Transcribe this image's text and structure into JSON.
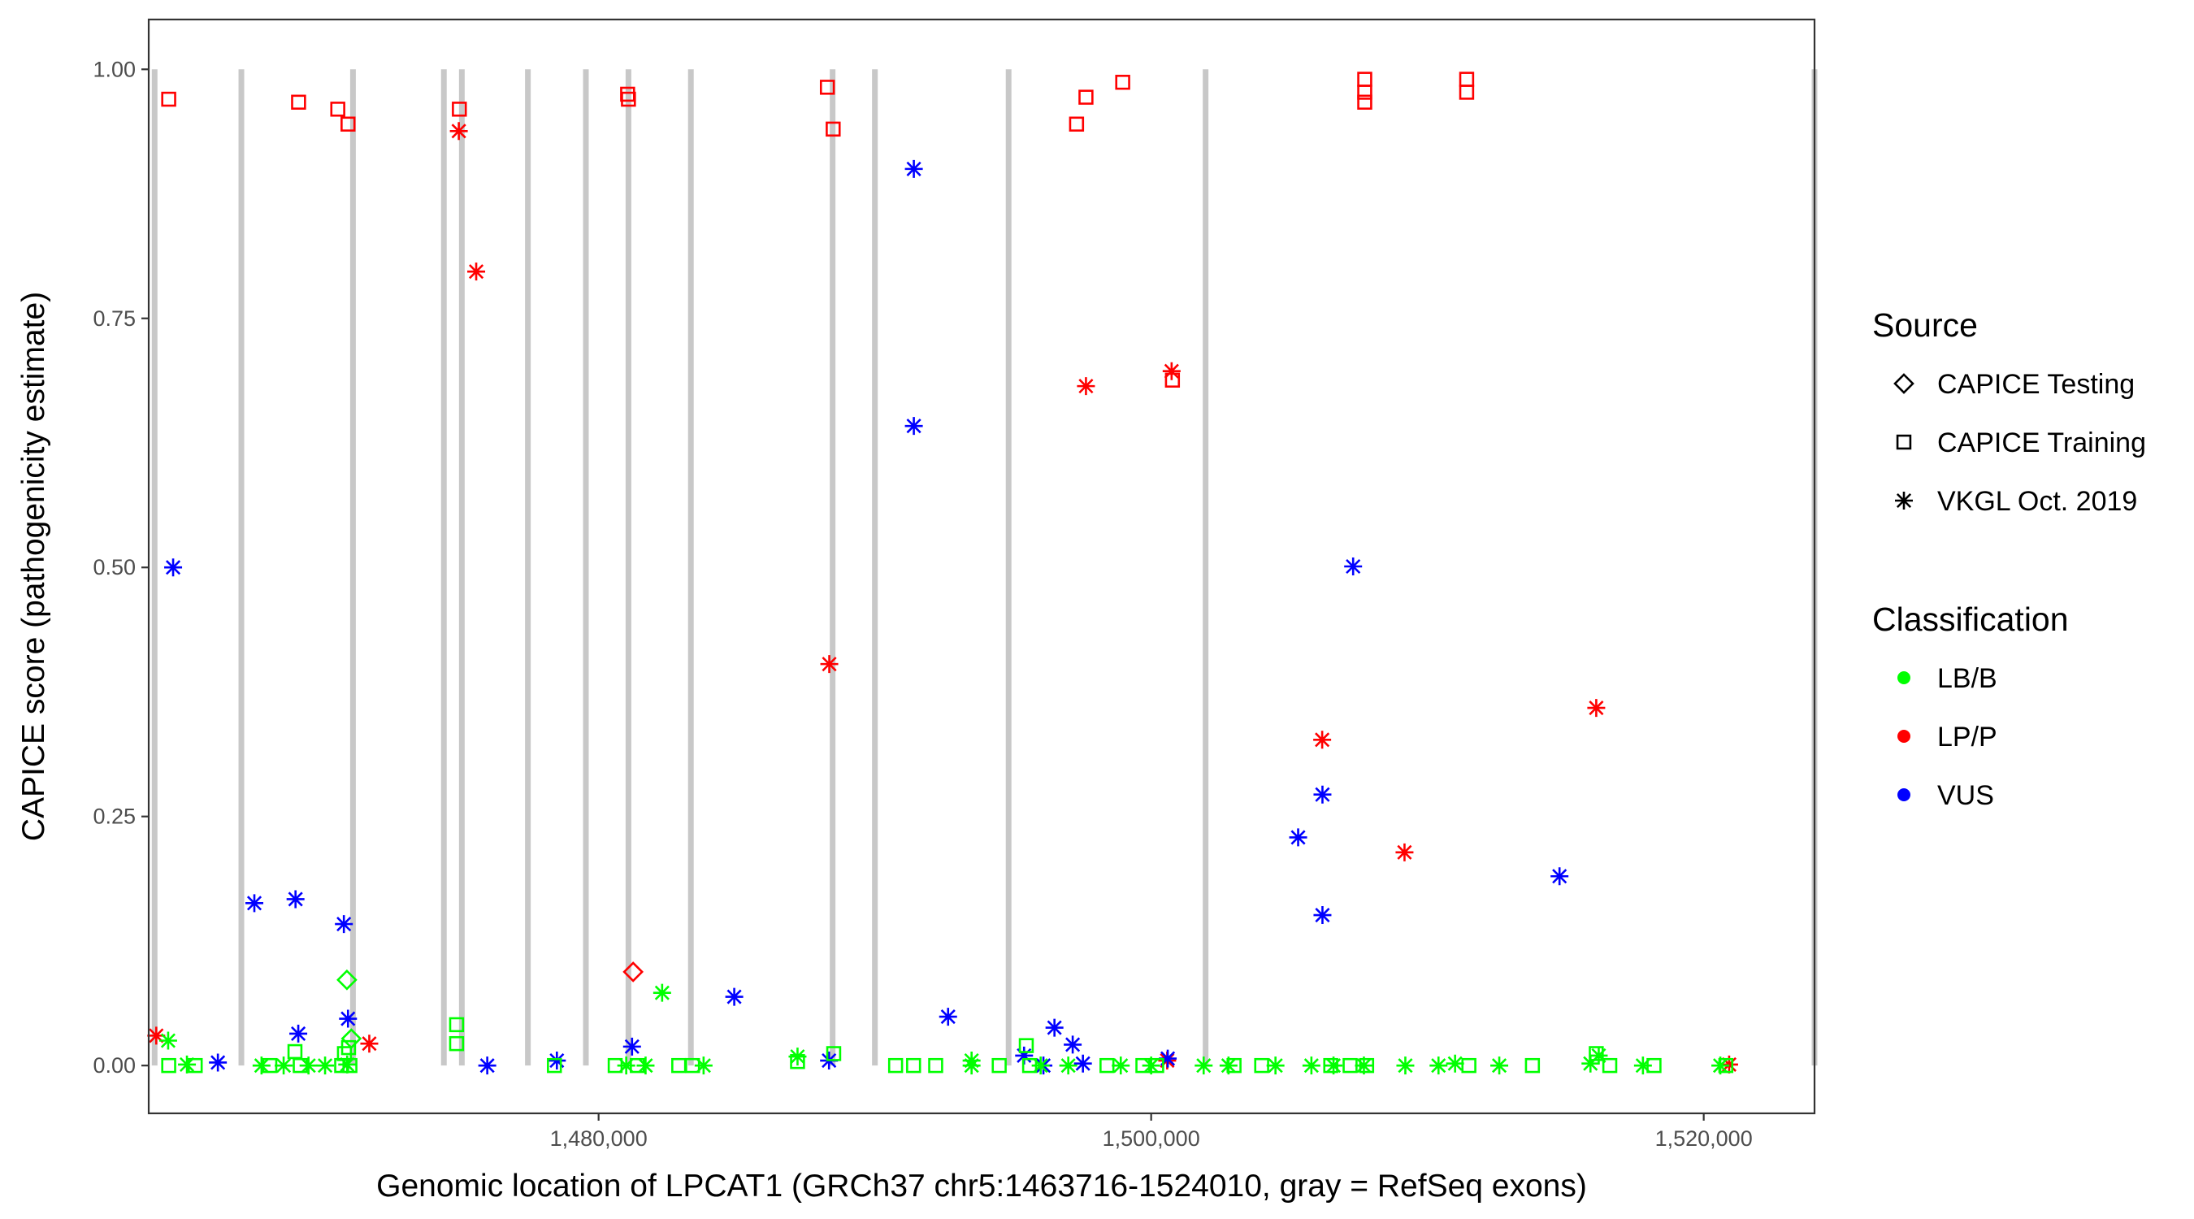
{
  "chart_data": {
    "type": "scatter",
    "title": "",
    "xlabel": "Genomic location of LPCAT1 (GRCh37 chr5:1463716-1524010, gray = RefSeq exons)",
    "ylabel": "CAPICE score (pathogenicity estimate)",
    "xlim": [
      1463716,
      1524010
    ],
    "ylim": [
      -0.048,
      1.05
    ],
    "x_ticks": [
      1480000,
      1500000,
      1520000
    ],
    "x_tick_labels": [
      "1,480,000",
      "1,500,000",
      "1,520,000"
    ],
    "y_ticks": [
      0.0,
      0.25,
      0.5,
      0.75,
      1.0
    ],
    "y_tick_labels": [
      "0.00",
      "0.25",
      "0.50",
      "0.75",
      "1.00"
    ],
    "grid": false,
    "exons": [
      1463930,
      1467070,
      1471110,
      1474400,
      1475050,
      1477440,
      1479540,
      1481080,
      1483340,
      1488470,
      1490000,
      1494840,
      1501970,
      1524010
    ],
    "legend": {
      "position": "right",
      "source_title": "Source",
      "source_items": [
        {
          "label": "CAPICE Testing",
          "shape": "diamond"
        },
        {
          "label": "CAPICE Training",
          "shape": "square"
        },
        {
          "label": "VKGL Oct. 2019",
          "shape": "asterisk"
        }
      ],
      "class_title": "Classification",
      "class_items": [
        {
          "label": "LB/B",
          "color": "#00ff00"
        },
        {
          "label": "LP/P",
          "color": "#ff0000"
        },
        {
          "label": "VUS",
          "color": "#0000ff"
        }
      ]
    },
    "colors": {
      "LB/B": "#00ff00",
      "LP/P": "#ff0000",
      "VUS": "#0000ff",
      "exon": "#c8c8c8"
    },
    "points": [
      {
        "x": 1464440,
        "y": 0.97,
        "s": "train",
        "c": "LP/P"
      },
      {
        "x": 1469140,
        "y": 0.967,
        "s": "train",
        "c": "LP/P"
      },
      {
        "x": 1470560,
        "y": 0.96,
        "s": "train",
        "c": "LP/P"
      },
      {
        "x": 1470930,
        "y": 0.945,
        "s": "train",
        "c": "LP/P"
      },
      {
        "x": 1474960,
        "y": 0.96,
        "s": "train",
        "c": "LP/P"
      },
      {
        "x": 1481050,
        "y": 0.975,
        "s": "train",
        "c": "LP/P"
      },
      {
        "x": 1481080,
        "y": 0.97,
        "s": "train",
        "c": "LP/P"
      },
      {
        "x": 1488280,
        "y": 0.982,
        "s": "train",
        "c": "LP/P"
      },
      {
        "x": 1488490,
        "y": 0.94,
        "s": "train",
        "c": "LP/P"
      },
      {
        "x": 1497300,
        "y": 0.945,
        "s": "train",
        "c": "LP/P"
      },
      {
        "x": 1497640,
        "y": 0.972,
        "s": "train",
        "c": "LP/P"
      },
      {
        "x": 1498970,
        "y": 0.987,
        "s": "train",
        "c": "LP/P"
      },
      {
        "x": 1500770,
        "y": 0.688,
        "s": "train",
        "c": "LP/P"
      },
      {
        "x": 1507730,
        "y": 0.99,
        "s": "train",
        "c": "LP/P"
      },
      {
        "x": 1507730,
        "y": 0.977,
        "s": "train",
        "c": "LP/P"
      },
      {
        "x": 1507730,
        "y": 0.967,
        "s": "train",
        "c": "LP/P"
      },
      {
        "x": 1511420,
        "y": 0.99,
        "s": "train",
        "c": "LP/P"
      },
      {
        "x": 1511420,
        "y": 0.977,
        "s": "train",
        "c": "LP/P"
      },
      {
        "x": 1474940,
        "y": 0.938,
        "s": "vkgl",
        "c": "LP/P"
      },
      {
        "x": 1475570,
        "y": 0.797,
        "s": "vkgl",
        "c": "LP/P"
      },
      {
        "x": 1463990,
        "y": 0.03,
        "s": "vkgl",
        "c": "LP/P"
      },
      {
        "x": 1471700,
        "y": 0.022,
        "s": "vkgl",
        "c": "LP/P"
      },
      {
        "x": 1488350,
        "y": 0.403,
        "s": "vkgl",
        "c": "LP/P"
      },
      {
        "x": 1497640,
        "y": 0.682,
        "s": "vkgl",
        "c": "LP/P"
      },
      {
        "x": 1500740,
        "y": 0.697,
        "s": "vkgl",
        "c": "LP/P"
      },
      {
        "x": 1506190,
        "y": 0.327,
        "s": "vkgl",
        "c": "LP/P"
      },
      {
        "x": 1509170,
        "y": 0.214,
        "s": "vkgl",
        "c": "LP/P"
      },
      {
        "x": 1516110,
        "y": 0.359,
        "s": "vkgl",
        "c": "LP/P"
      },
      {
        "x": 1500580,
        "y": 0.005,
        "s": "vkgl",
        "c": "LP/P"
      },
      {
        "x": 1520920,
        "y": 0.001,
        "s": "vkgl",
        "c": "LP/P"
      },
      {
        "x": 1481250,
        "y": 0.094,
        "s": "test",
        "c": "LP/P"
      },
      {
        "x": 1464600,
        "y": 0.5,
        "s": "vkgl",
        "c": "VUS"
      },
      {
        "x": 1467540,
        "y": 0.163,
        "s": "vkgl",
        "c": "VUS"
      },
      {
        "x": 1469030,
        "y": 0.167,
        "s": "vkgl",
        "c": "VUS"
      },
      {
        "x": 1470780,
        "y": 0.142,
        "s": "vkgl",
        "c": "VUS"
      },
      {
        "x": 1469130,
        "y": 0.032,
        "s": "vkgl",
        "c": "VUS"
      },
      {
        "x": 1470930,
        "y": 0.047,
        "s": "vkgl",
        "c": "VUS"
      },
      {
        "x": 1466220,
        "y": 0.003,
        "s": "vkgl",
        "c": "VUS"
      },
      {
        "x": 1475970,
        "y": 0.0,
        "s": "vkgl",
        "c": "VUS"
      },
      {
        "x": 1478490,
        "y": 0.005,
        "s": "vkgl",
        "c": "VUS"
      },
      {
        "x": 1481210,
        "y": 0.019,
        "s": "vkgl",
        "c": "VUS"
      },
      {
        "x": 1484910,
        "y": 0.069,
        "s": "vkgl",
        "c": "VUS"
      },
      {
        "x": 1488340,
        "y": 0.005,
        "s": "vkgl",
        "c": "VUS"
      },
      {
        "x": 1491410,
        "y": 0.9,
        "s": "vkgl",
        "c": "VUS"
      },
      {
        "x": 1491410,
        "y": 0.642,
        "s": "vkgl",
        "c": "VUS"
      },
      {
        "x": 1492650,
        "y": 0.049,
        "s": "vkgl",
        "c": "VUS"
      },
      {
        "x": 1495400,
        "y": 0.01,
        "s": "vkgl",
        "c": "VUS"
      },
      {
        "x": 1496500,
        "y": 0.038,
        "s": "vkgl",
        "c": "VUS"
      },
      {
        "x": 1497160,
        "y": 0.021,
        "s": "vkgl",
        "c": "VUS"
      },
      {
        "x": 1496100,
        "y": 0.0,
        "s": "vkgl",
        "c": "VUS"
      },
      {
        "x": 1497530,
        "y": 0.002,
        "s": "vkgl",
        "c": "VUS"
      },
      {
        "x": 1500600,
        "y": 0.007,
        "s": "vkgl",
        "c": "VUS"
      },
      {
        "x": 1505320,
        "y": 0.229,
        "s": "vkgl",
        "c": "VUS"
      },
      {
        "x": 1506200,
        "y": 0.272,
        "s": "vkgl",
        "c": "VUS"
      },
      {
        "x": 1506200,
        "y": 0.151,
        "s": "vkgl",
        "c": "VUS"
      },
      {
        "x": 1507310,
        "y": 0.501,
        "s": "vkgl",
        "c": "VUS"
      },
      {
        "x": 1514780,
        "y": 0.19,
        "s": "vkgl",
        "c": "VUS"
      },
      {
        "x": 1470890,
        "y": 0.086,
        "s": "test",
        "c": "LB/B"
      },
      {
        "x": 1471050,
        "y": 0.027,
        "s": "test",
        "c": "LB/B"
      },
      {
        "x": 1469010,
        "y": 0.014,
        "s": "train",
        "c": "LB/B"
      },
      {
        "x": 1470800,
        "y": 0.012,
        "s": "train",
        "c": "LB/B"
      },
      {
        "x": 1470950,
        "y": 0.018,
        "s": "train",
        "c": "LB/B"
      },
      {
        "x": 1474860,
        "y": 0.041,
        "s": "train",
        "c": "LB/B"
      },
      {
        "x": 1474860,
        "y": 0.022,
        "s": "train",
        "c": "LB/B"
      },
      {
        "x": 1488510,
        "y": 0.012,
        "s": "train",
        "c": "LB/B"
      },
      {
        "x": 1487200,
        "y": 0.004,
        "s": "train",
        "c": "LB/B"
      },
      {
        "x": 1495480,
        "y": 0.02,
        "s": "train",
        "c": "LB/B"
      },
      {
        "x": 1516110,
        "y": 0.012,
        "s": "train",
        "c": "LB/B"
      },
      {
        "x": 1464440,
        "y": 0.0,
        "s": "train",
        "c": "LB/B"
      },
      {
        "x": 1465400,
        "y": 0.0,
        "s": "train",
        "c": "LB/B"
      },
      {
        "x": 1468100,
        "y": 0.0,
        "s": "train",
        "c": "LB/B"
      },
      {
        "x": 1469200,
        "y": 0.0,
        "s": "train",
        "c": "LB/B"
      },
      {
        "x": 1470700,
        "y": 0.0,
        "s": "train",
        "c": "LB/B"
      },
      {
        "x": 1471000,
        "y": 0.0,
        "s": "train",
        "c": "LB/B"
      },
      {
        "x": 1478400,
        "y": 0.0,
        "s": "train",
        "c": "LB/B"
      },
      {
        "x": 1480600,
        "y": 0.0,
        "s": "train",
        "c": "LB/B"
      },
      {
        "x": 1481400,
        "y": 0.0,
        "s": "train",
        "c": "LB/B"
      },
      {
        "x": 1482900,
        "y": 0.0,
        "s": "train",
        "c": "LB/B"
      },
      {
        "x": 1483400,
        "y": 0.0,
        "s": "train",
        "c": "LB/B"
      },
      {
        "x": 1490750,
        "y": 0.0,
        "s": "train",
        "c": "LB/B"
      },
      {
        "x": 1491400,
        "y": 0.0,
        "s": "train",
        "c": "LB/B"
      },
      {
        "x": 1492200,
        "y": 0.0,
        "s": "train",
        "c": "LB/B"
      },
      {
        "x": 1494500,
        "y": 0.0,
        "s": "train",
        "c": "LB/B"
      },
      {
        "x": 1495600,
        "y": 0.0,
        "s": "train",
        "c": "LB/B"
      },
      {
        "x": 1498400,
        "y": 0.0,
        "s": "train",
        "c": "LB/B"
      },
      {
        "x": 1499700,
        "y": 0.0,
        "s": "train",
        "c": "LB/B"
      },
      {
        "x": 1500200,
        "y": 0.0,
        "s": "train",
        "c": "LB/B"
      },
      {
        "x": 1503000,
        "y": 0.0,
        "s": "train",
        "c": "LB/B"
      },
      {
        "x": 1504000,
        "y": 0.0,
        "s": "train",
        "c": "LB/B"
      },
      {
        "x": 1506500,
        "y": 0.0,
        "s": "train",
        "c": "LB/B"
      },
      {
        "x": 1507200,
        "y": 0.0,
        "s": "train",
        "c": "LB/B"
      },
      {
        "x": 1507800,
        "y": 0.0,
        "s": "train",
        "c": "LB/B"
      },
      {
        "x": 1511500,
        "y": 0.0,
        "s": "train",
        "c": "LB/B"
      },
      {
        "x": 1513800,
        "y": 0.0,
        "s": "train",
        "c": "LB/B"
      },
      {
        "x": 1516600,
        "y": 0.0,
        "s": "train",
        "c": "LB/B"
      },
      {
        "x": 1518200,
        "y": 0.0,
        "s": "train",
        "c": "LB/B"
      },
      {
        "x": 1520800,
        "y": 0.0,
        "s": "train",
        "c": "LB/B"
      },
      {
        "x": 1464420,
        "y": 0.025,
        "s": "vkgl",
        "c": "LB/B"
      },
      {
        "x": 1465100,
        "y": 0.001,
        "s": "vkgl",
        "c": "LB/B"
      },
      {
        "x": 1467800,
        "y": 0.0,
        "s": "vkgl",
        "c": "LB/B"
      },
      {
        "x": 1468600,
        "y": 0.0,
        "s": "vkgl",
        "c": "LB/B"
      },
      {
        "x": 1469500,
        "y": 0.0,
        "s": "vkgl",
        "c": "LB/B"
      },
      {
        "x": 1470100,
        "y": 0.0,
        "s": "vkgl",
        "c": "LB/B"
      },
      {
        "x": 1470900,
        "y": 0.001,
        "s": "vkgl",
        "c": "LB/B"
      },
      {
        "x": 1481000,
        "y": 0.0,
        "s": "vkgl",
        "c": "LB/B"
      },
      {
        "x": 1481700,
        "y": 0.0,
        "s": "vkgl",
        "c": "LB/B"
      },
      {
        "x": 1482300,
        "y": 0.073,
        "s": "vkgl",
        "c": "LB/B"
      },
      {
        "x": 1483800,
        "y": 0.0,
        "s": "vkgl",
        "c": "LB/B"
      },
      {
        "x": 1487200,
        "y": 0.009,
        "s": "vkgl",
        "c": "LB/B"
      },
      {
        "x": 1493500,
        "y": 0.005,
        "s": "vkgl",
        "c": "LB/B"
      },
      {
        "x": 1493500,
        "y": 0.0,
        "s": "vkgl",
        "c": "LB/B"
      },
      {
        "x": 1496000,
        "y": 0.0,
        "s": "vkgl",
        "c": "LB/B"
      },
      {
        "x": 1497000,
        "y": 0.0,
        "s": "vkgl",
        "c": "LB/B"
      },
      {
        "x": 1498900,
        "y": 0.0,
        "s": "vkgl",
        "c": "LB/B"
      },
      {
        "x": 1500000,
        "y": 0.0,
        "s": "vkgl",
        "c": "LB/B"
      },
      {
        "x": 1501900,
        "y": 0.0,
        "s": "vkgl",
        "c": "LB/B"
      },
      {
        "x": 1502800,
        "y": 0.0,
        "s": "vkgl",
        "c": "LB/B"
      },
      {
        "x": 1504500,
        "y": 0.0,
        "s": "vkgl",
        "c": "LB/B"
      },
      {
        "x": 1505800,
        "y": 0.0,
        "s": "vkgl",
        "c": "LB/B"
      },
      {
        "x": 1506600,
        "y": 0.0,
        "s": "vkgl",
        "c": "LB/B"
      },
      {
        "x": 1507700,
        "y": 0.0,
        "s": "vkgl",
        "c": "LB/B"
      },
      {
        "x": 1509200,
        "y": 0.0,
        "s": "vkgl",
        "c": "LB/B"
      },
      {
        "x": 1510400,
        "y": 0.0,
        "s": "vkgl",
        "c": "LB/B"
      },
      {
        "x": 1511000,
        "y": 0.002,
        "s": "vkgl",
        "c": "LB/B"
      },
      {
        "x": 1512600,
        "y": 0.0,
        "s": "vkgl",
        "c": "LB/B"
      },
      {
        "x": 1515900,
        "y": 0.002,
        "s": "vkgl",
        "c": "LB/B"
      },
      {
        "x": 1516200,
        "y": 0.01,
        "s": "vkgl",
        "c": "LB/B"
      },
      {
        "x": 1517800,
        "y": 0.0,
        "s": "vkgl",
        "c": "LB/B"
      },
      {
        "x": 1520600,
        "y": 0.0,
        "s": "vkgl",
        "c": "LB/B"
      }
    ]
  }
}
